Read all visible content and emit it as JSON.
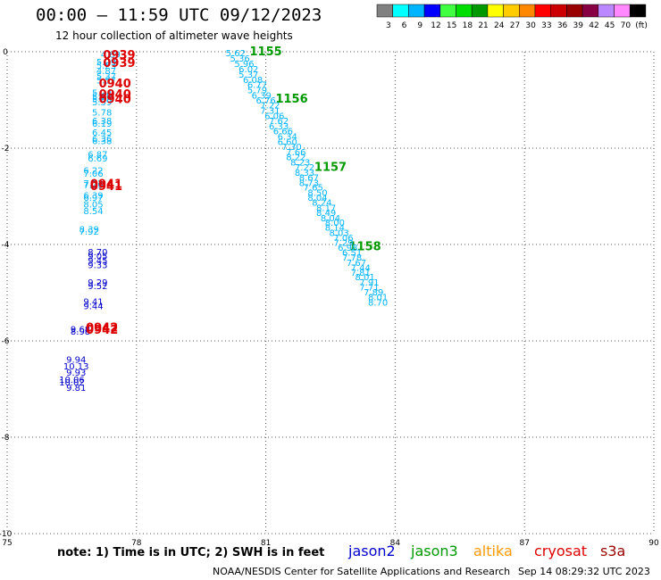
{
  "title": "00:00 – 11:59 UTC 09/12/2023",
  "subtitle": "12 hour collection of altimeter wave heights",
  "colorbar": {
    "colors": [
      "#808080",
      "#00ffff",
      "#00b4ff",
      "#0000ff",
      "#40ff40",
      "#00dd00",
      "#009900",
      "#ffff00",
      "#ffcc00",
      "#ff8800",
      "#ff0000",
      "#cc0000",
      "#990000",
      "#880044",
      "#bb88ff",
      "#ff88ff",
      "#000000"
    ],
    "labels": [
      "3",
      "6",
      "9",
      "12",
      "15",
      "18",
      "21",
      "24",
      "27",
      "30",
      "33",
      "36",
      "39",
      "42",
      "45",
      "70",
      "(ft)"
    ]
  },
  "chart_data": {
    "type": "scatter",
    "xlim": [
      75,
      90
    ],
    "ylim": [
      -10,
      0
    ],
    "xticks": [
      "75",
      "78",
      "81",
      "84",
      "87",
      "90"
    ],
    "yticks": [
      "0",
      "-2",
      "-4",
      "-6",
      "-8",
      "-10"
    ],
    "grid": true,
    "series": [
      {
        "name": "jason2",
        "color": "#0000cc",
        "points": [
          {
            "x": 77.1,
            "y": -4.15,
            "label": "8.70"
          },
          {
            "x": 77.1,
            "y": -4.23,
            "label": "9.05"
          },
          {
            "x": 77.1,
            "y": -4.32,
            "label": "9.45"
          },
          {
            "x": 77.1,
            "y": -4.42,
            "label": "9.33"
          },
          {
            "x": 77.1,
            "y": -4.78,
            "label": "9.29"
          },
          {
            "x": 77.1,
            "y": -4.85,
            "label": "9.52"
          },
          {
            "x": 77.0,
            "y": -5.18,
            "label": "9.41"
          },
          {
            "x": 77.0,
            "y": -5.27,
            "label": "9.44"
          },
          {
            "x": 76.7,
            "y": -5.75,
            "label": "9.68"
          },
          {
            "x": 76.7,
            "y": -5.8,
            "label": "8.98"
          },
          {
            "x": 76.6,
            "y": -6.38,
            "label": "9.94"
          },
          {
            "x": 76.6,
            "y": -6.52,
            "label": "10.13"
          },
          {
            "x": 76.6,
            "y": -6.65,
            "label": "9.93"
          },
          {
            "x": 76.5,
            "y": -6.8,
            "label": "10.06"
          },
          {
            "x": 76.5,
            "y": -6.85,
            "label": "10.02"
          },
          {
            "x": 76.6,
            "y": -6.96,
            "label": "9.81"
          }
        ]
      },
      {
        "name": "jason3",
        "color": "#009900",
        "points": [
          {
            "x": 81.0,
            "y": 0.0,
            "label": "1155"
          },
          {
            "x": 81.6,
            "y": -0.98,
            "label": "1156"
          },
          {
            "x": 82.5,
            "y": -2.4,
            "label": "1157"
          },
          {
            "x": 83.3,
            "y": -4.05,
            "label": "1158"
          }
        ]
      },
      {
        "name": "saral",
        "color": "#00b4ff",
        "points": [
          {
            "x": 77.4,
            "y": -0.05,
            "label": "4.89"
          },
          {
            "x": 77.3,
            "y": -0.2,
            "label": "5.29"
          },
          {
            "x": 77.3,
            "y": -0.28,
            "label": "5.23"
          },
          {
            "x": 77.3,
            "y": -0.39,
            "label": "4.87"
          },
          {
            "x": 77.3,
            "y": -0.5,
            "label": "5.37"
          },
          {
            "x": 77.3,
            "y": -0.58,
            "label": "5.57"
          },
          {
            "x": 77.2,
            "y": -0.84,
            "label": "5.24"
          },
          {
            "x": 77.2,
            "y": -0.92,
            "label": "5.90"
          },
          {
            "x": 77.2,
            "y": -0.97,
            "label": "5.58"
          },
          {
            "x": 77.2,
            "y": -1.04,
            "label": "5.59"
          },
          {
            "x": 77.2,
            "y": -1.25,
            "label": "5.78"
          },
          {
            "x": 77.2,
            "y": -1.43,
            "label": "6.38"
          },
          {
            "x": 77.2,
            "y": -1.48,
            "label": "6.19"
          },
          {
            "x": 77.2,
            "y": -1.67,
            "label": "6.45"
          },
          {
            "x": 77.2,
            "y": -1.8,
            "label": "6.36"
          },
          {
            "x": 77.2,
            "y": -1.84,
            "label": "6.38"
          },
          {
            "x": 77.1,
            "y": -2.12,
            "label": "6.87"
          },
          {
            "x": 77.1,
            "y": -2.2,
            "label": "6.69"
          },
          {
            "x": 77.0,
            "y": -2.45,
            "label": "6.22"
          },
          {
            "x": 77.0,
            "y": -2.52,
            "label": "7.06"
          },
          {
            "x": 77.0,
            "y": -2.72,
            "label": "7.52"
          },
          {
            "x": 77.0,
            "y": -2.76,
            "label": "7.39"
          },
          {
            "x": 77.0,
            "y": -2.97,
            "label": "6.39"
          },
          {
            "x": 77.0,
            "y": -3.02,
            "label": "6.97"
          },
          {
            "x": 77.0,
            "y": -3.16,
            "label": "8.05"
          },
          {
            "x": 77.0,
            "y": -3.3,
            "label": "8.54"
          },
          {
            "x": 76.9,
            "y": -3.68,
            "label": "8.39"
          },
          {
            "x": 76.9,
            "y": -3.72,
            "label": "7.92"
          },
          {
            "x": 80.3,
            "y": -0.02,
            "label": "5.62"
          },
          {
            "x": 80.4,
            "y": -0.13,
            "label": "5.36"
          },
          {
            "x": 80.5,
            "y": -0.24,
            "label": "5.96"
          },
          {
            "x": 80.6,
            "y": -0.35,
            "label": "6.02"
          },
          {
            "x": 80.6,
            "y": -0.46,
            "label": "5.37"
          },
          {
            "x": 80.7,
            "y": -0.57,
            "label": "6.08"
          },
          {
            "x": 80.8,
            "y": -0.68,
            "label": "6.77"
          },
          {
            "x": 80.8,
            "y": -0.79,
            "label": "5.79"
          },
          {
            "x": 80.9,
            "y": -0.9,
            "label": "6.39"
          },
          {
            "x": 81.0,
            "y": -1.0,
            "label": "6.76"
          },
          {
            "x": 81.1,
            "y": -1.1,
            "label": "7.22"
          },
          {
            "x": 81.1,
            "y": -1.21,
            "label": "7.31"
          },
          {
            "x": 81.2,
            "y": -1.32,
            "label": "6.06"
          },
          {
            "x": 81.3,
            "y": -1.43,
            "label": "7.62"
          },
          {
            "x": 81.3,
            "y": -1.54,
            "label": "6.33"
          },
          {
            "x": 81.4,
            "y": -1.64,
            "label": "6.66"
          },
          {
            "x": 81.5,
            "y": -1.75,
            "label": "6.34"
          },
          {
            "x": 81.5,
            "y": -1.86,
            "label": "6.60"
          },
          {
            "x": 81.6,
            "y": -1.96,
            "label": "7.30"
          },
          {
            "x": 81.7,
            "y": -2.07,
            "label": "7.66"
          },
          {
            "x": 81.7,
            "y": -2.18,
            "label": "8.22"
          },
          {
            "x": 81.8,
            "y": -2.29,
            "label": "8.23"
          },
          {
            "x": 81.9,
            "y": -2.39,
            "label": "7.22"
          },
          {
            "x": 81.9,
            "y": -2.5,
            "label": "8.33"
          },
          {
            "x": 82.0,
            "y": -2.6,
            "label": "8.67"
          },
          {
            "x": 82.0,
            "y": -2.71,
            "label": "8.73"
          },
          {
            "x": 82.1,
            "y": -2.81,
            "label": "7.65"
          },
          {
            "x": 82.2,
            "y": -2.92,
            "label": "8.50"
          },
          {
            "x": 82.2,
            "y": -3.02,
            "label": "8.04"
          },
          {
            "x": 82.3,
            "y": -3.12,
            "label": "8.24"
          },
          {
            "x": 82.4,
            "y": -3.23,
            "label": "8.17"
          },
          {
            "x": 82.4,
            "y": -3.33,
            "label": "8.49"
          },
          {
            "x": 82.5,
            "y": -3.44,
            "label": "8.04"
          },
          {
            "x": 82.6,
            "y": -3.54,
            "label": "8.00"
          },
          {
            "x": 82.6,
            "y": -3.64,
            "label": "8.14"
          },
          {
            "x": 82.7,
            "y": -3.75,
            "label": "8.03"
          },
          {
            "x": 82.8,
            "y": -3.85,
            "label": "7.06"
          },
          {
            "x": 82.8,
            "y": -3.95,
            "label": "7.29"
          },
          {
            "x": 82.9,
            "y": -4.06,
            "label": "6.98"
          },
          {
            "x": 83.0,
            "y": -4.16,
            "label": "6.51"
          },
          {
            "x": 83.0,
            "y": -4.26,
            "label": "7.78"
          },
          {
            "x": 83.1,
            "y": -4.37,
            "label": "7.67"
          },
          {
            "x": 83.2,
            "y": -4.47,
            "label": "7.44"
          },
          {
            "x": 83.2,
            "y": -4.57,
            "label": "7.81"
          },
          {
            "x": 83.3,
            "y": -4.67,
            "label": "8.01"
          },
          {
            "x": 83.4,
            "y": -4.78,
            "label": "7.91"
          },
          {
            "x": 83.4,
            "y": -4.88,
            "label": "7.71"
          },
          {
            "x": 83.5,
            "y": -4.98,
            "label": "7.89"
          },
          {
            "x": 83.6,
            "y": -5.08,
            "label": "8.01"
          },
          {
            "x": 83.6,
            "y": -5.19,
            "label": "8.70"
          }
        ]
      },
      {
        "name": "cryosat",
        "color": "#dd0000",
        "points": [
          {
            "x": 77.6,
            "y": -0.07,
            "label": "0939"
          },
          {
            "x": 77.6,
            "y": -0.24,
            "label": "0939"
          },
          {
            "x": 77.5,
            "y": -0.67,
            "label": "0940"
          },
          {
            "x": 77.5,
            "y": -0.89,
            "label": "0940"
          },
          {
            "x": 77.5,
            "y": -0.99,
            "label": "0940"
          },
          {
            "x": 77.3,
            "y": -2.75,
            "label": "0941"
          },
          {
            "x": 77.3,
            "y": -2.8,
            "label": "0941"
          },
          {
            "x": 77.2,
            "y": -5.73,
            "label": "0942"
          },
          {
            "x": 77.2,
            "y": -5.78,
            "label": "0942"
          }
        ]
      }
    ]
  },
  "note": "note:  1) Time is in UTC;  2) SWH is in feet",
  "legend": [
    {
      "name": "jason2",
      "color": "#0000cc"
    },
    {
      "name": "jason3",
      "color": "#009900"
    },
    {
      "name": "altika",
      "color": "#ff9900"
    },
    {
      "name": "cryosat",
      "color": "#dd0000"
    },
    {
      "name": "s3a",
      "color": "#990000"
    }
  ],
  "footer_credit": "NOAA/NESDIS Center for Satellite Applications and Research",
  "footer_time": "Sep 14 08:29:32 UTC 2023"
}
